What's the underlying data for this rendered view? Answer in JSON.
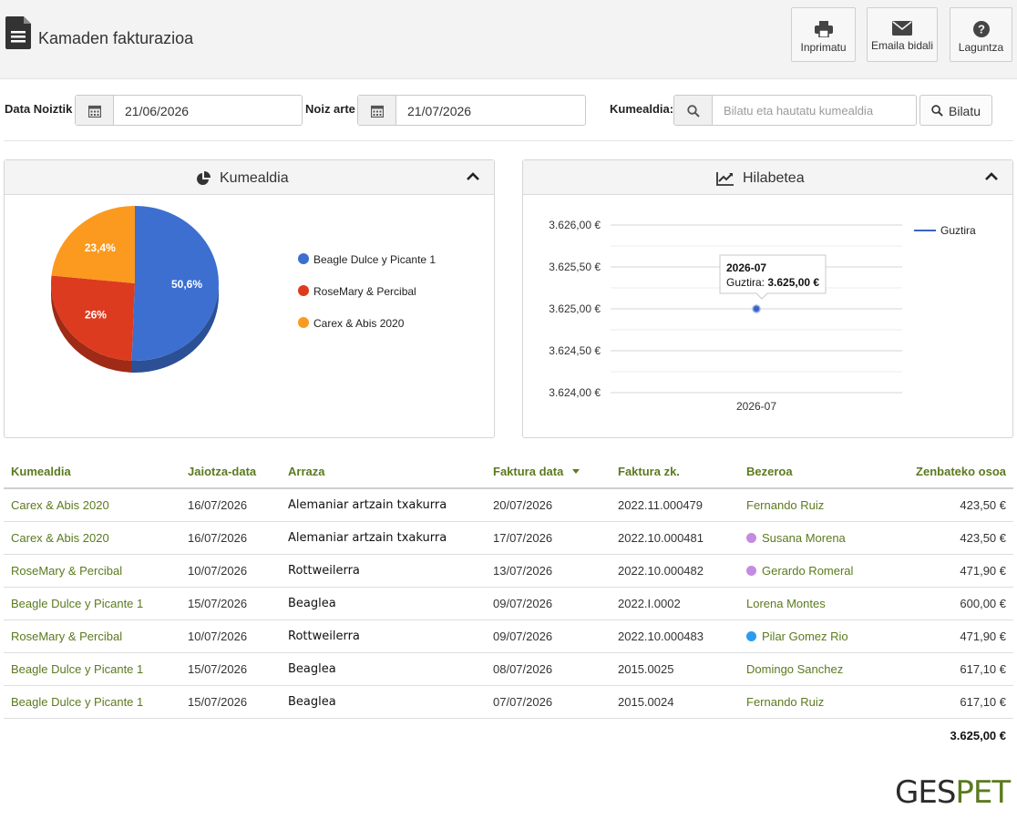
{
  "header": {
    "title": "Kamaden fakturazioa",
    "buttons": [
      {
        "label": "Inprimatu",
        "icon": "printer-icon"
      },
      {
        "label": "Emaila bidali",
        "icon": "envelope-icon"
      },
      {
        "label": "Laguntza",
        "icon": "question-icon"
      }
    ]
  },
  "filters": {
    "from_label": "Data Noiztik",
    "from_value": "21/06/2026",
    "to_label": "Noiz arte",
    "to_value": "21/07/2026",
    "litter_label": "Kumealdia:",
    "search_placeholder": "Bilatu eta hautatu kumealdia",
    "search_button": "Bilatu"
  },
  "panels": {
    "pie_title": "Kumealdia",
    "line_title": "Hilabetea"
  },
  "chart_data": [
    {
      "type": "pie",
      "categories": [
        "Beagle Dulce y  Picante 1",
        "RoseMary &  Percibal",
        "Carex & Abis  2020"
      ],
      "values": [
        50.6,
        26,
        23.4
      ],
      "data_labels": [
        "50,6%",
        "26%",
        "23,4%"
      ],
      "colors": [
        "#3c6fd0",
        "#dd3b1f",
        "#fb9a1f"
      ],
      "legend_position": "right"
    },
    {
      "type": "line",
      "x": [
        "2026-07"
      ],
      "series": [
        {
          "name": "Guztira",
          "values": [
            3625.0
          ],
          "color": "#3a62c4"
        }
      ],
      "ylim": [
        3624.0,
        3626.0
      ],
      "y_ticks": [
        "3.626,00 €",
        "3.625,50 €",
        "3.625,00 €",
        "3.624,50 €",
        "3.624,00 €"
      ],
      "y_tick_values": [
        3626.0,
        3625.5,
        3625.0,
        3624.5,
        3624.0
      ],
      "grid": true,
      "legend_position": "top-right",
      "tooltip": {
        "title": "2026-07",
        "label": "Guztira:",
        "value": "3.625,00 €"
      }
    }
  ],
  "table": {
    "columns": [
      "Kumealdia",
      "Jaiotza-data",
      "Arraza",
      "Faktura data",
      "Faktura zk.",
      "Bezeroa",
      "Zenbateko osoa"
    ],
    "rows": [
      {
        "litter": "Carex & Abis 2020",
        "birth": "16/07/2026",
        "breed": "Alemaniar artzain txakurra",
        "inv_date": "20/07/2026",
        "inv_no": "2022.11.000479",
        "client": "Fernando Ruiz",
        "dot": "",
        "amount": "423,50 €"
      },
      {
        "litter": "Carex & Abis 2020",
        "birth": "16/07/2026",
        "breed": "Alemaniar artzain txakurra",
        "inv_date": "17/07/2026",
        "inv_no": "2022.10.000481",
        "client": "Susana Morena",
        "dot": "#c58be0",
        "amount": "423,50 €"
      },
      {
        "litter": "RoseMary & Percibal",
        "birth": "10/07/2026",
        "breed": "Rottweilerra",
        "inv_date": "13/07/2026",
        "inv_no": "2022.10.000482",
        "client": "Gerardo Romeral",
        "dot": "#c58be0",
        "amount": "471,90 €"
      },
      {
        "litter": "Beagle Dulce y Picante 1",
        "birth": "15/07/2026",
        "breed": "Beaglea",
        "inv_date": "09/07/2026",
        "inv_no": "2022.I.0002",
        "client": "Lorena Montes",
        "dot": "",
        "amount": "600,00 €"
      },
      {
        "litter": "RoseMary & Percibal",
        "birth": "10/07/2026",
        "breed": "Rottweilerra",
        "inv_date": "09/07/2026",
        "inv_no": "2022.10.000483",
        "client": "Pilar Gomez Rio",
        "dot": "#2a9cf0",
        "amount": "471,90 €"
      },
      {
        "litter": "Beagle Dulce y Picante 1",
        "birth": "15/07/2026",
        "breed": "Beaglea",
        "inv_date": "08/07/2026",
        "inv_no": "2015.0025",
        "client": "Domingo Sanchez",
        "dot": "",
        "amount": "617,10 €"
      },
      {
        "litter": "Beagle Dulce y Picante 1",
        "birth": "15/07/2026",
        "breed": "Beaglea",
        "inv_date": "07/07/2026",
        "inv_no": "2015.0024",
        "client": "Fernando Ruiz",
        "dot": "",
        "amount": "617,10 €"
      }
    ],
    "total": "3.625,00 €"
  },
  "logo": {
    "part1": "GES",
    "part2": "PET",
    "color1": "#2b2b2b",
    "color2": "#5b7a1e"
  }
}
